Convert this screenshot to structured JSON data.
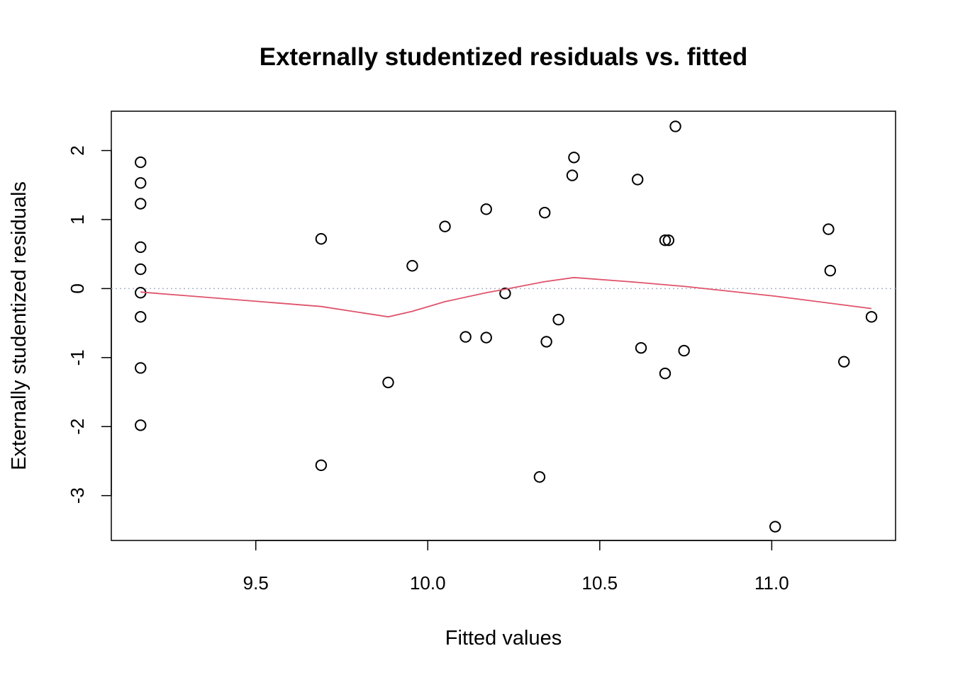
{
  "chart_data": {
    "type": "scatter",
    "title": "Externally studentized residuals vs. fitted",
    "xlabel": "Fitted values",
    "ylabel": "Externally studentized residuals",
    "xlim": [
      9.08,
      11.36
    ],
    "ylim": [
      -3.65,
      2.57
    ],
    "xticks": [
      9.5,
      10.0,
      10.5,
      11.0
    ],
    "xtick_labels": [
      "9.5",
      "10.0",
      "10.5",
      "11.0"
    ],
    "yticks": [
      -3,
      -2,
      -1,
      0,
      1,
      2
    ],
    "ytick_labels": [
      "-3",
      "-2",
      "-1",
      "0",
      "1",
      "2"
    ],
    "grid": false,
    "reference_line": {
      "y": 0,
      "style": "dotted",
      "color": "#a9b4c9"
    },
    "series": [
      {
        "type": "scatter",
        "marker": "open-circle",
        "color": "#000000",
        "points": [
          [
            9.165,
            1.83
          ],
          [
            9.165,
            1.53
          ],
          [
            9.165,
            1.23
          ],
          [
            9.165,
            0.6
          ],
          [
            9.165,
            0.28
          ],
          [
            9.165,
            -0.06
          ],
          [
            9.165,
            -0.41
          ],
          [
            9.165,
            -1.15
          ],
          [
            9.165,
            -1.98
          ],
          [
            9.69,
            0.72
          ],
          [
            9.69,
            -2.56
          ],
          [
            9.885,
            -1.36
          ],
          [
            9.955,
            0.33
          ],
          [
            10.05,
            0.9
          ],
          [
            10.11,
            -0.7
          ],
          [
            10.17,
            1.15
          ],
          [
            10.17,
            -0.71
          ],
          [
            10.225,
            -0.07
          ],
          [
            10.325,
            -2.73
          ],
          [
            10.34,
            1.1
          ],
          [
            10.345,
            -0.77
          ],
          [
            10.38,
            -0.45
          ],
          [
            10.42,
            1.64
          ],
          [
            10.425,
            1.9
          ],
          [
            10.61,
            1.58
          ],
          [
            10.62,
            -0.86
          ],
          [
            10.69,
            0.7
          ],
          [
            10.69,
            -1.23
          ],
          [
            10.7,
            0.7
          ],
          [
            10.72,
            2.35
          ],
          [
            10.745,
            -0.9
          ],
          [
            11.01,
            -3.45
          ],
          [
            11.165,
            0.86
          ],
          [
            11.17,
            0.26
          ],
          [
            11.21,
            -1.06
          ],
          [
            11.29,
            -0.41
          ]
        ]
      },
      {
        "type": "line",
        "name": "",
        "color": "#df536b",
        "points": [
          [
            9.165,
            -0.05
          ],
          [
            9.69,
            -0.26
          ],
          [
            9.885,
            -0.41
          ],
          [
            9.955,
            -0.33
          ],
          [
            10.05,
            -0.19
          ],
          [
            10.17,
            -0.06
          ],
          [
            10.225,
            -0.01
          ],
          [
            10.34,
            0.1
          ],
          [
            10.425,
            0.16
          ],
          [
            10.61,
            0.09
          ],
          [
            10.75,
            0.03
          ],
          [
            11.01,
            -0.11
          ],
          [
            11.29,
            -0.29
          ]
        ]
      }
    ]
  }
}
